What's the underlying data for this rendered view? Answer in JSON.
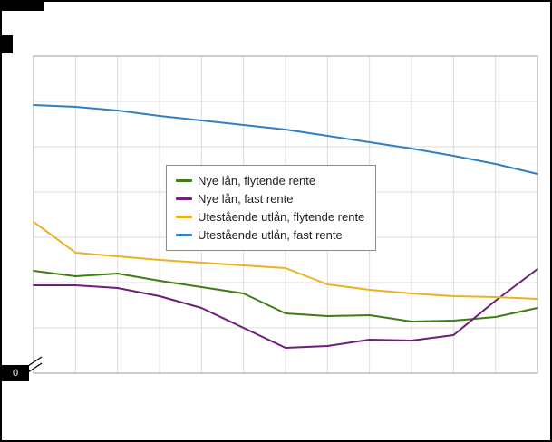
{
  "axes": {
    "zero_label": "0",
    "x_tick_labels_visible": false,
    "y_tick_labels_visible": false
  },
  "colors": {
    "grid": "#dcdcdc",
    "plot_border": "#9e9e9e",
    "frame": "#000000",
    "background": "#ffffff",
    "legend_border": "#8c8c8c"
  },
  "chart_data": {
    "type": "line",
    "title": "",
    "xlabel": "",
    "ylabel": "",
    "x": [
      1,
      2,
      3,
      4,
      5,
      6,
      7,
      8,
      9,
      10,
      11,
      12,
      13
    ],
    "x_tick_labels_visible": false,
    "ylim": [
      1.5,
      5.0
    ],
    "y_gridline_step": 0.5,
    "y_axis_break_above_zero": true,
    "y_axis_bottom_label": "0",
    "grid": true,
    "legend_position": "center",
    "series": [
      {
        "name": "Nye lån, flytende rente",
        "color": "#3f7d14",
        "values": [
          2.63,
          2.57,
          2.6,
          2.52,
          2.45,
          2.38,
          2.16,
          2.13,
          2.14,
          2.07,
          2.08,
          2.12,
          2.22
        ]
      },
      {
        "name": "Nye lån, fast rente",
        "color": "#6f1d7b",
        "values": [
          2.47,
          2.47,
          2.44,
          2.35,
          2.22,
          2.0,
          1.78,
          1.8,
          1.87,
          1.86,
          1.92,
          2.3,
          2.65
        ]
      },
      {
        "name": "Utestående utlån, flytende rente",
        "color": "#eab220",
        "values": [
          3.17,
          2.83,
          2.79,
          2.75,
          2.72,
          2.69,
          2.66,
          2.48,
          2.42,
          2.38,
          2.35,
          2.34,
          2.32
        ]
      },
      {
        "name": "Utestående utlån, fast rente",
        "color": "#2f80c2",
        "values": [
          4.46,
          4.44,
          4.4,
          4.34,
          4.29,
          4.24,
          4.19,
          4.12,
          4.05,
          3.98,
          3.9,
          3.81,
          3.7
        ]
      }
    ]
  }
}
